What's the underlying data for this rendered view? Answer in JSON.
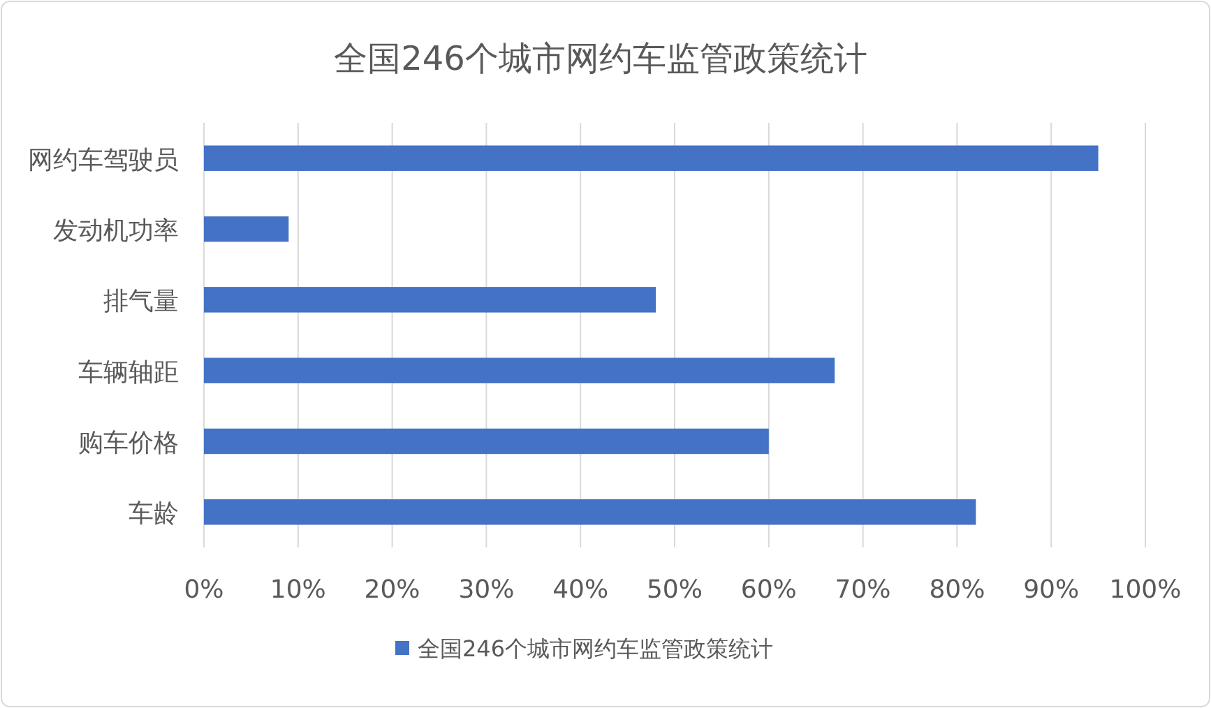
{
  "chart_data": {
    "type": "bar",
    "orientation": "horizontal",
    "title": "全国246个城市网约车监管政策统计",
    "categories": [
      "网约车驾驶员",
      "发动机功率",
      "排气量",
      "车辆轴距",
      "购车价格",
      "车龄"
    ],
    "series": [
      {
        "name": "全国246个城市网约车监管政策统计",
        "color": "#4472c4",
        "values": [
          95,
          9,
          48,
          67,
          60,
          82
        ]
      }
    ],
    "xlim": [
      0,
      100
    ],
    "xticks": [
      {
        "value": 0,
        "label": "0%"
      },
      {
        "value": 10,
        "label": "10%"
      },
      {
        "value": 20,
        "label": "20%"
      },
      {
        "value": 30,
        "label": "30%"
      },
      {
        "value": 40,
        "label": "40%"
      },
      {
        "value": 50,
        "label": "50%"
      },
      {
        "value": 60,
        "label": "60%"
      },
      {
        "value": 70,
        "label": "70%"
      },
      {
        "value": 80,
        "label": "80%"
      },
      {
        "value": 90,
        "label": "90%"
      },
      {
        "value": 100,
        "label": "100%"
      }
    ],
    "grid": "x",
    "legend": "bottom"
  }
}
